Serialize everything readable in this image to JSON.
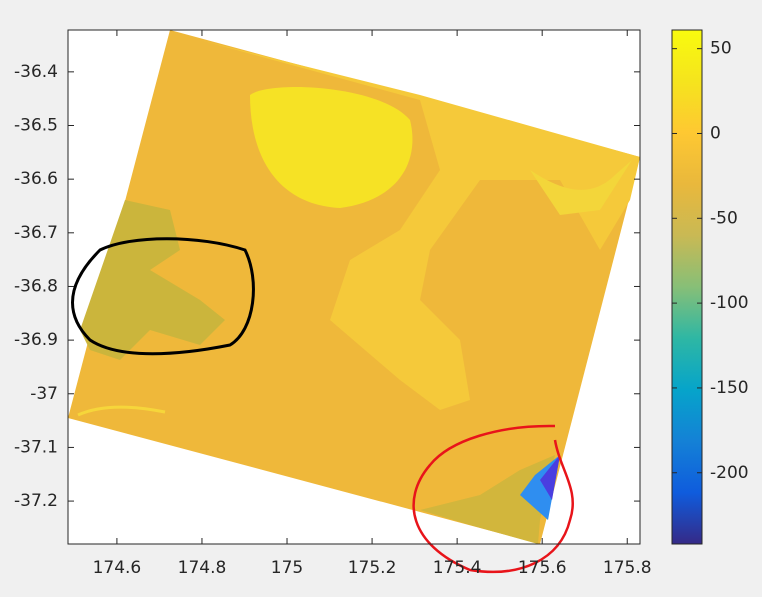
{
  "chart_data": {
    "type": "heatmap",
    "xlim": [
      174.485,
      175.83
    ],
    "xticks": [
      174.6,
      174.8,
      175,
      175.2,
      175.4,
      175.6,
      175.8
    ],
    "ylim": [
      -37.28,
      -36.322
    ],
    "yticks": [
      -36.4,
      -36.5,
      -36.6,
      -36.7,
      -36.8,
      -36.9,
      -37,
      -37.1,
      -37.2
    ],
    "colorbar": {
      "clim": [
        -242,
        61
      ],
      "ticks": [
        50,
        0,
        -50,
        -100,
        -150,
        -200
      ],
      "colormap": [
        "#352a87",
        "#0f5cdd",
        "#1481d6",
        "#06a4ca",
        "#2eb7a4",
        "#87bf77",
        "#c9b954",
        "#e9b83c",
        "#fec832",
        "#f5e41d",
        "#f9fb0e"
      ]
    }
  }
}
